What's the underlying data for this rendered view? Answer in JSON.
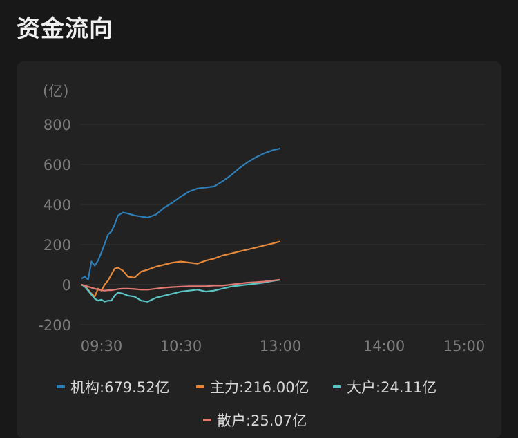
{
  "page": {
    "title": "资金流向"
  },
  "chart_data": {
    "type": "line",
    "ylabel": "(亿)",
    "y_ticks": [
      "800",
      "600",
      "400",
      "200",
      "0",
      "-200"
    ],
    "ylim": [
      -200,
      800
    ],
    "x_ticks": [
      "09:30",
      "10:30",
      "13:00",
      "14:00",
      "15:00"
    ],
    "x_range_minutes": [
      0,
      240
    ],
    "grid": true,
    "legend_position": "bottom",
    "series": [
      {
        "name": "机构",
        "legend_label": "机构:679.52亿",
        "color": "#2e7fb8",
        "x": [
          0,
          2,
          4,
          6,
          8,
          10,
          12,
          14,
          16,
          18,
          20,
          22,
          25,
          28,
          32,
          36,
          40,
          45,
          50,
          55,
          60,
          65,
          70,
          75,
          80,
          85,
          90,
          95,
          100,
          105,
          110,
          115,
          120
        ],
        "values": [
          30,
          40,
          25,
          115,
          95,
          120,
          160,
          205,
          250,
          265,
          300,
          345,
          360,
          355,
          345,
          340,
          335,
          350,
          385,
          410,
          440,
          465,
          480,
          485,
          490,
          515,
          545,
          580,
          610,
          635,
          655,
          670,
          680
        ]
      },
      {
        "name": "主力",
        "legend_label": "主力:216.00亿",
        "color": "#e8893a",
        "x": [
          0,
          2,
          4,
          6,
          8,
          10,
          12,
          14,
          16,
          18,
          20,
          22,
          25,
          28,
          32,
          36,
          40,
          45,
          50,
          55,
          60,
          65,
          70,
          75,
          80,
          85,
          90,
          95,
          100,
          105,
          110,
          115,
          120
        ],
        "values": [
          0,
          -5,
          -25,
          -45,
          -60,
          -20,
          -30,
          0,
          20,
          50,
          80,
          85,
          70,
          40,
          35,
          65,
          75,
          90,
          100,
          110,
          115,
          110,
          105,
          120,
          130,
          145,
          155,
          165,
          175,
          185,
          195,
          205,
          216
        ]
      },
      {
        "name": "大户",
        "legend_label": "大户:24.11亿",
        "color": "#5bc5c6",
        "x": [
          0,
          2,
          4,
          6,
          8,
          10,
          12,
          14,
          16,
          18,
          20,
          22,
          25,
          28,
          32,
          36,
          40,
          45,
          50,
          55,
          60,
          65,
          70,
          75,
          80,
          85,
          90,
          95,
          100,
          105,
          110,
          115,
          120
        ],
        "values": [
          0,
          -10,
          -30,
          -50,
          -70,
          -80,
          -75,
          -85,
          -80,
          -80,
          -55,
          -40,
          -45,
          -55,
          -60,
          -80,
          -85,
          -65,
          -55,
          -45,
          -35,
          -30,
          -25,
          -35,
          -30,
          -20,
          -10,
          -5,
          0,
          5,
          10,
          18,
          24
        ]
      },
      {
        "name": "散户",
        "legend_label": "散户:25.07亿",
        "color": "#e07a73",
        "x": [
          0,
          2,
          4,
          6,
          8,
          10,
          12,
          14,
          16,
          18,
          20,
          22,
          25,
          28,
          32,
          36,
          40,
          45,
          50,
          55,
          60,
          65,
          70,
          75,
          80,
          85,
          90,
          95,
          100,
          105,
          110,
          115,
          120
        ],
        "values": [
          0,
          -5,
          -10,
          -15,
          -20,
          -25,
          -28,
          -30,
          -28,
          -28,
          -25,
          -22,
          -20,
          -20,
          -22,
          -25,
          -25,
          -20,
          -15,
          -12,
          -10,
          -8,
          -8,
          -8,
          -5,
          -5,
          0,
          5,
          10,
          12,
          15,
          20,
          25
        ]
      }
    ]
  }
}
